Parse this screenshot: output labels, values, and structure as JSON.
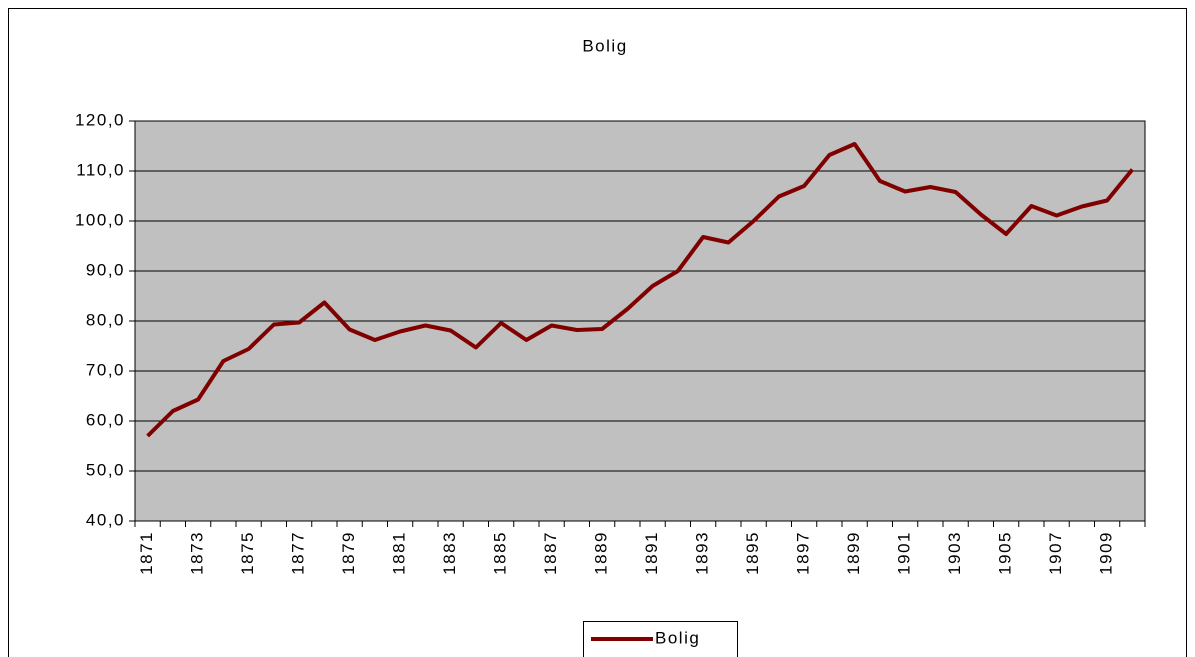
{
  "chart_data": {
    "type": "line",
    "title": "Bolig",
    "categories": [
      "1871",
      null,
      "1873",
      null,
      "1875",
      null,
      "1877",
      null,
      "1879",
      null,
      "1881",
      null,
      "1883",
      null,
      "1885",
      null,
      "1887",
      null,
      "1889",
      null,
      "1891",
      null,
      "1893",
      null,
      "1895",
      null,
      "1897",
      null,
      "1899",
      null,
      "1901",
      null,
      "1903",
      null,
      "1905",
      null,
      "1907",
      null,
      "1909",
      null
    ],
    "series": [
      {
        "name": "Bolig",
        "color": "#800000",
        "values": [
          57,
          62,
          64.3,
          72,
          74.4,
          79.3,
          79.7,
          83.7,
          78.3,
          76.2,
          77.9,
          79.1,
          78.1,
          74.7,
          79.6,
          76.2,
          79.1,
          78.2,
          78.4,
          82.4,
          87,
          90,
          96.8,
          95.7,
          100,
          104.9,
          107,
          113.2,
          115.4,
          108,
          105.9,
          106.8,
          105.8,
          101.3,
          97.4,
          103,
          101.1,
          102.9,
          104.1,
          110.3
        ]
      }
    ],
    "ylim": [
      40,
      120
    ],
    "yticks": [
      {
        "value": 40,
        "label": "40,0"
      },
      {
        "value": 50,
        "label": "50,0"
      },
      {
        "value": 60,
        "label": "60,0"
      },
      {
        "value": 70,
        "label": "70,0"
      },
      {
        "value": 80,
        "label": "80,0"
      },
      {
        "value": 90,
        "label": "90,0"
      },
      {
        "value": 100,
        "label": "100,0"
      },
      {
        "value": 110,
        "label": "110,0"
      },
      {
        "value": 120,
        "label": "120,0"
      }
    ],
    "grid": true,
    "plot_background": "#c0c0c0",
    "legend": "bottom"
  }
}
